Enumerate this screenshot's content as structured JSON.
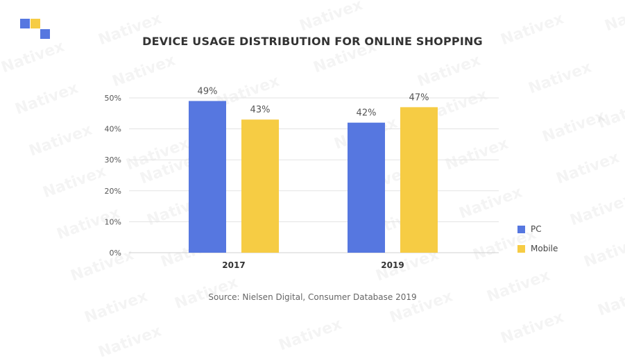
{
  "watermark": {
    "text": "Nativex"
  },
  "brand": {
    "colors": [
      "#5677E0",
      "#F6CC44",
      "#5677E0"
    ]
  },
  "chart_data": {
    "type": "bar",
    "title": "DEVICE USAGE DISTRIBUTION FOR ONLINE SHOPPING",
    "categories": [
      "2017",
      "2019"
    ],
    "series": [
      {
        "name": "PC",
        "values": [
          49,
          42
        ],
        "color": "#5677E0"
      },
      {
        "name": "Mobile",
        "values": [
          43,
          47
        ],
        "color": "#F6CC44"
      }
    ],
    "data_labels": [
      [
        "49%",
        "42%"
      ],
      [
        "43%",
        "47%"
      ]
    ],
    "y_ticks": [
      "0%",
      "10%",
      "20%",
      "30%",
      "40%",
      "50%"
    ],
    "ylim": [
      0,
      50
    ],
    "xlabel": "",
    "ylabel": "",
    "grid": true,
    "legend": "right",
    "source": "Source: Nielsen Digital, Consumer Database 2019"
  }
}
